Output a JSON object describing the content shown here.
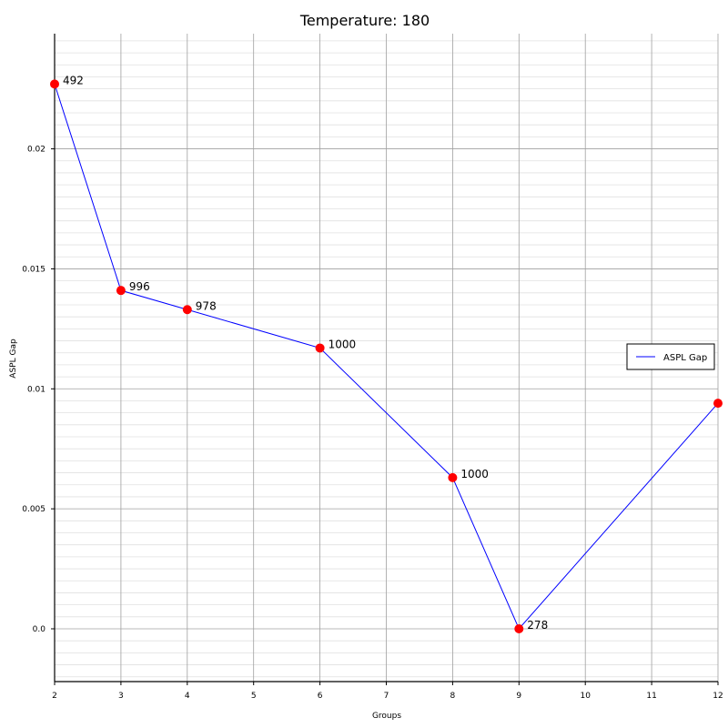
{
  "chart_data": {
    "type": "line",
    "title": "Temperature: 180",
    "xlabel": "Groups",
    "ylabel": "ASPL Gap",
    "x_ticks": [
      2,
      3,
      4,
      5,
      6,
      7,
      8,
      9,
      10,
      11,
      12
    ],
    "y_ticks": [
      0.0,
      0.005,
      0.01,
      0.015,
      0.02
    ],
    "y_tick_labels": [
      "0.0",
      "0.005",
      "0.01",
      "0.015",
      "0.02"
    ],
    "xlim": [
      2,
      12
    ],
    "ylim": [
      -0.0022,
      0.0248
    ],
    "grid": true,
    "legend_position": "right",
    "series": [
      {
        "name": "ASPL Gap",
        "color": "#0000ff",
        "marker_color": "#ff0000",
        "x": [
          2,
          3,
          4,
          6,
          8,
          9,
          12
        ],
        "y": [
          0.0227,
          0.0141,
          0.0133,
          0.0117,
          0.0063,
          0.0,
          0.0094
        ],
        "point_labels": [
          "492",
          "996",
          "978",
          "1000",
          "1000",
          "278",
          ""
        ]
      }
    ]
  }
}
